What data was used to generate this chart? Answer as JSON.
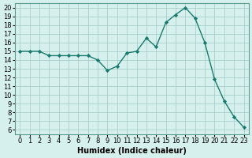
{
  "x": [
    0,
    1,
    2,
    3,
    4,
    5,
    6,
    7,
    8,
    9,
    10,
    11,
    12,
    13,
    14,
    15,
    16,
    17,
    18,
    19,
    20,
    21,
    22,
    23
  ],
  "y": [
    15,
    15,
    15,
    14.5,
    14.5,
    14.5,
    14.5,
    14.5,
    14,
    12.8,
    13.3,
    14.8,
    15,
    16.5,
    15.5,
    18.3,
    19.2,
    20,
    18.8,
    16,
    11.8,
    9.3,
    7.5,
    6.3
  ],
  "xlabel": "Humidex (Indice chaleur)",
  "xlim": [
    -0.5,
    23.5
  ],
  "ylim": [
    5.5,
    20.5
  ],
  "yticks": [
    6,
    7,
    8,
    9,
    10,
    11,
    12,
    13,
    14,
    15,
    16,
    17,
    18,
    19,
    20
  ],
  "xticks": [
    0,
    1,
    2,
    3,
    4,
    5,
    6,
    7,
    8,
    9,
    10,
    11,
    12,
    13,
    14,
    15,
    16,
    17,
    18,
    19,
    20,
    21,
    22,
    23
  ],
  "line_color": "#1a7a6e",
  "marker_color": "#1a7a6e",
  "bg_color": "#d6f0ee",
  "grid_color": "#a0c8c4",
  "axis_fontsize": 7,
  "tick_fontsize": 6
}
